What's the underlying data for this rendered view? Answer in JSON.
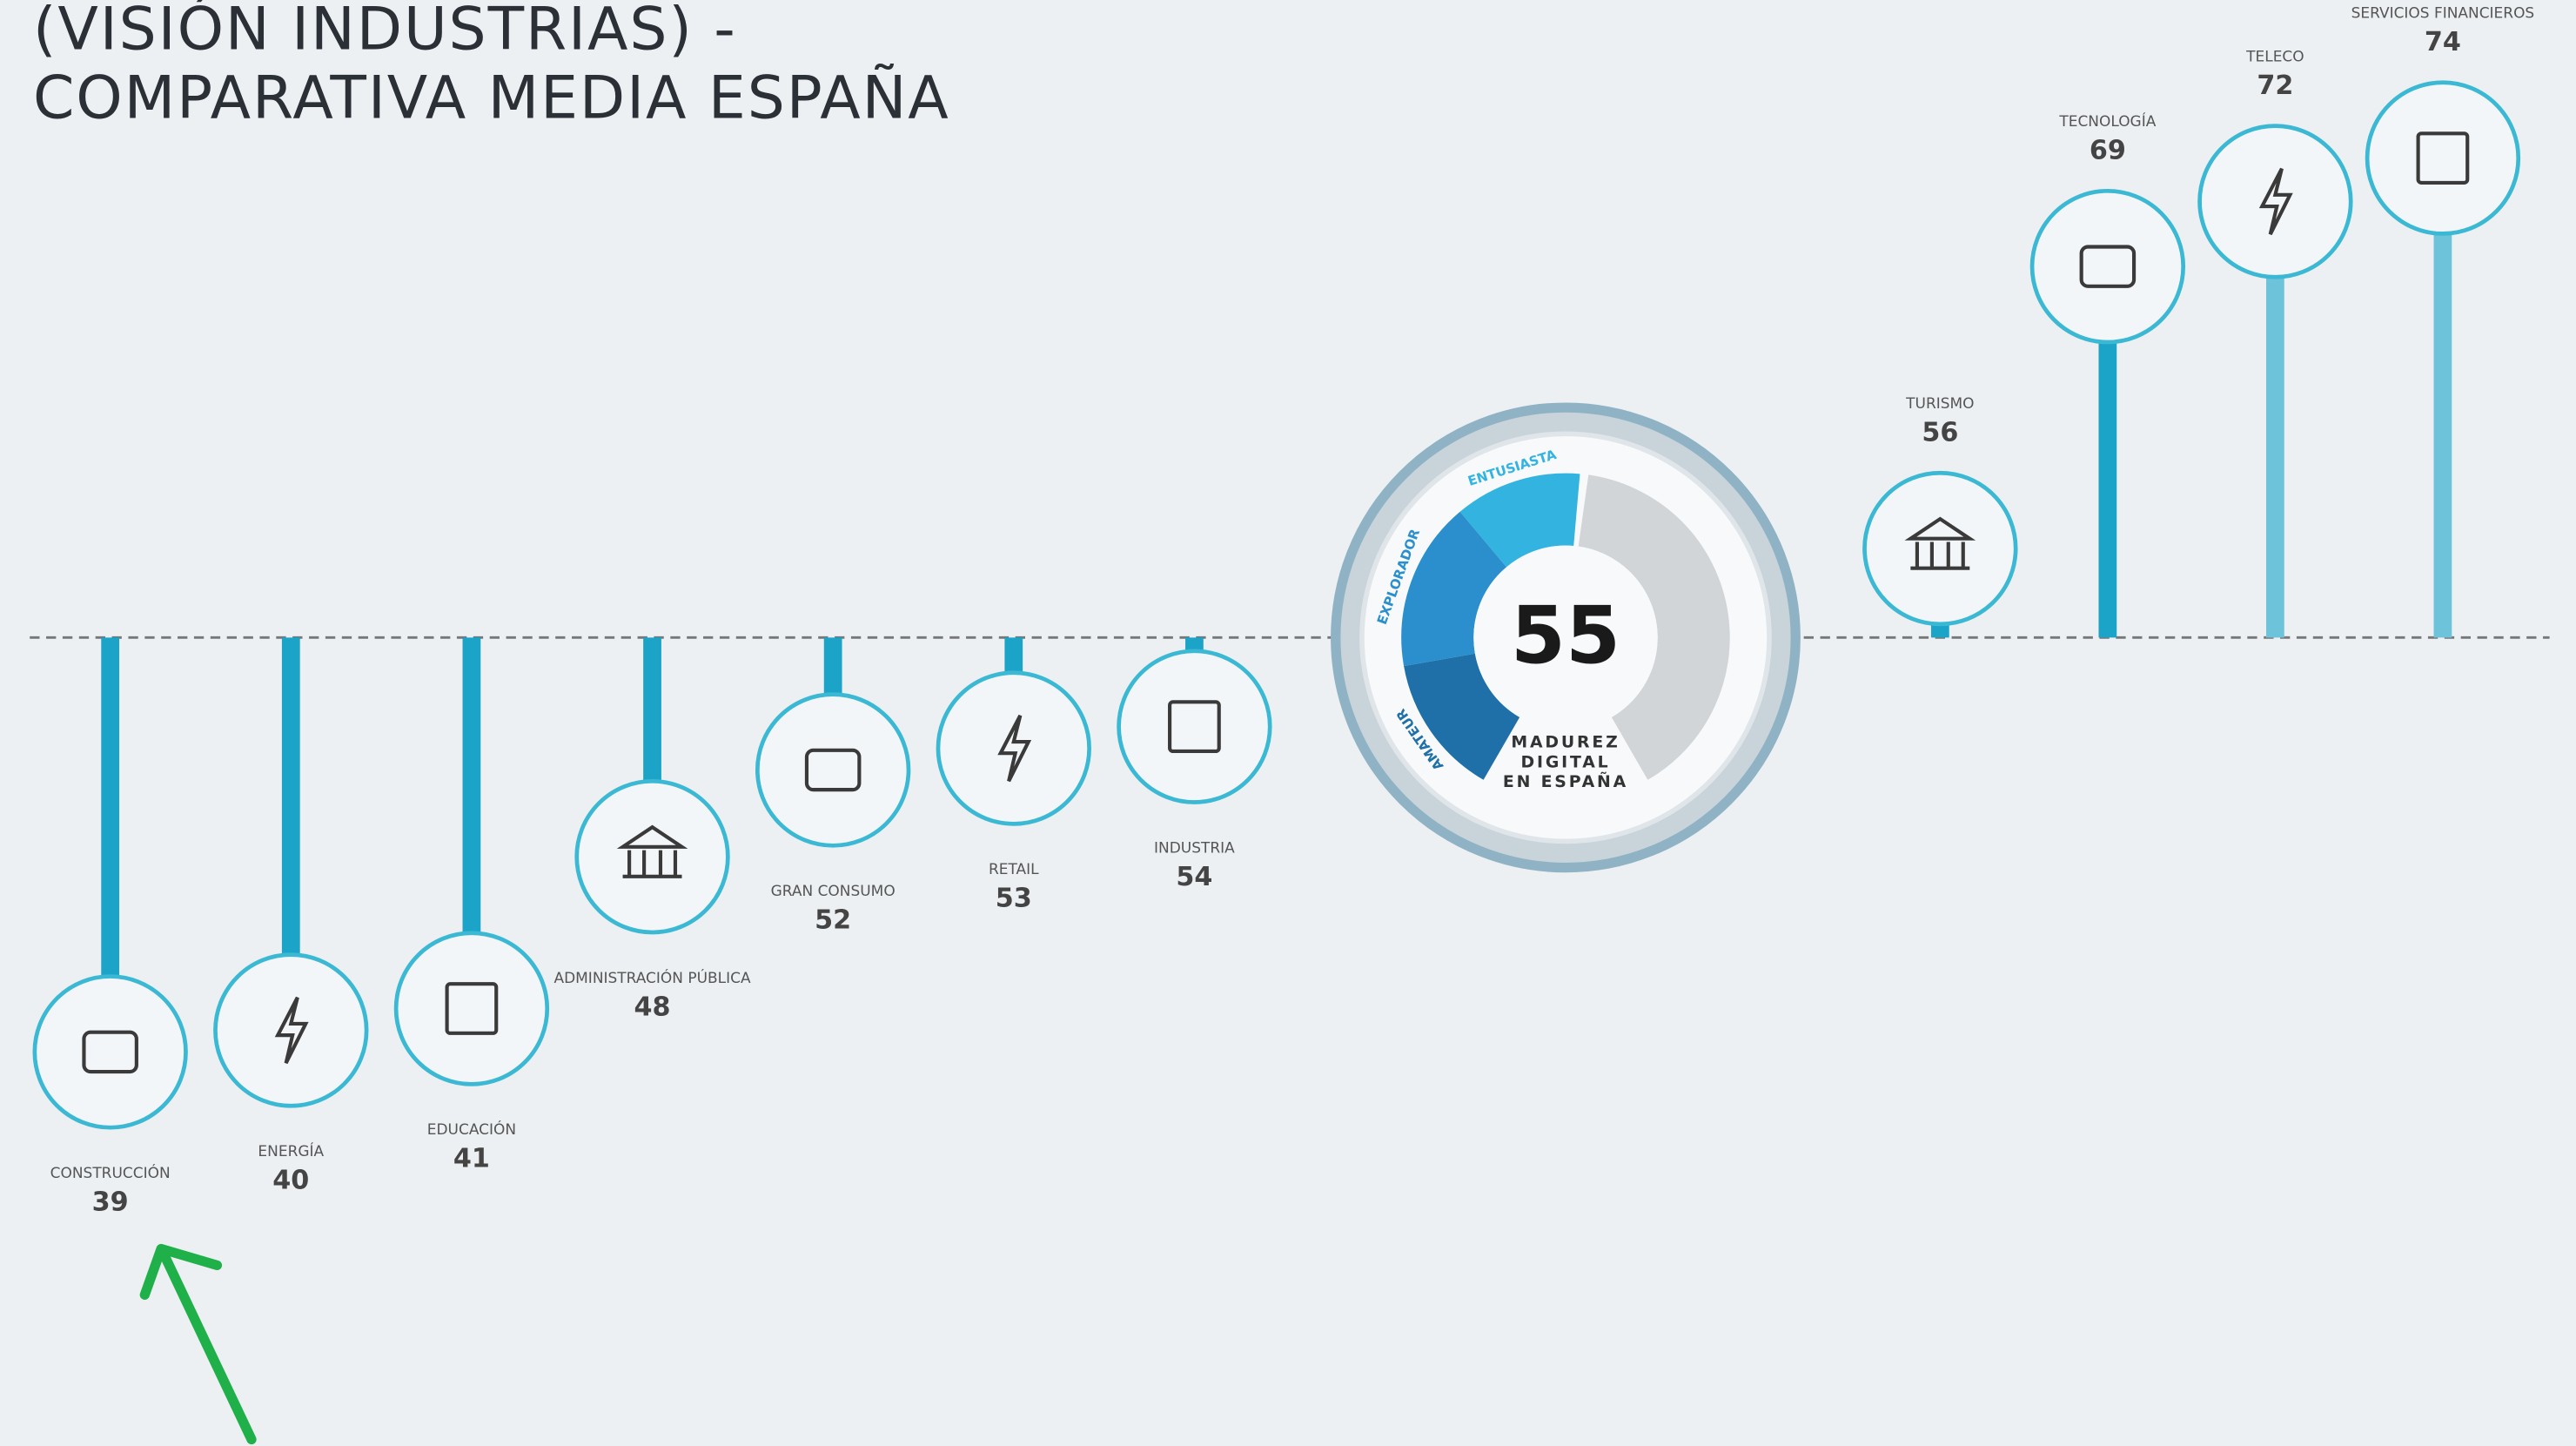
{
  "chart_data": {
    "type": "lollipop",
    "title": [
      "(VISIÓN INDUSTRIAS) -",
      "COMPARATIVA MEDIA ESPAÑA"
    ],
    "categories": [
      "CONSTRUCCIÓN",
      "ENERGÍA",
      "EDUCACIÓN",
      "ADMINISTRACIÓN PÚBLICA",
      "GRAN CONSUMO",
      "RETAIL",
      "INDUSTRIA",
      "TURISMO",
      "TECNOLOGÍA",
      "TELECO",
      "SERVICIOS FINANCIEROS"
    ],
    "values": [
      39,
      40,
      41,
      48,
      52,
      53,
      54,
      56,
      69,
      72,
      74
    ],
    "reference": 55,
    "reference_label": [
      "MADUREZ",
      "DIGITAL",
      "EN ESPAÑA"
    ],
    "gauge_levels": [
      "AMATEUR",
      "EXPLORADOR",
      "ENTUSIASTA"
    ],
    "color": "#1ba3c8",
    "color_above": "#6cc3da"
  }
}
